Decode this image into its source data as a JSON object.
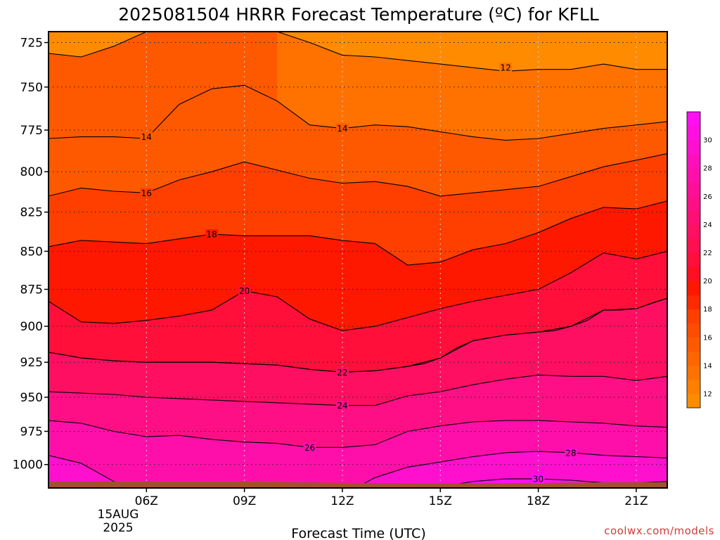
{
  "chart_data": {
    "type": "heatmap",
    "title": "2025081504 HRRR Forecast Temperature (ºC) for KFLL",
    "xlabel": "Forecast Time (UTC)",
    "ylabel": "",
    "x_ticks": [
      "06Z",
      "09Z",
      "12Z",
      "15Z",
      "18Z",
      "21Z"
    ],
    "x_tick_hours": [
      6,
      9,
      12,
      15,
      18,
      21
    ],
    "x_date_label_line1": "15AUG",
    "x_date_label_line2": "2025",
    "xlim": [
      3,
      21.95
    ],
    "y_ticks": [
      725,
      750,
      775,
      800,
      825,
      850,
      875,
      900,
      925,
      950,
      975,
      1000
    ],
    "ylim": [
      1018,
      719
    ],
    "y_scale": "log-pressure",
    "grid": true,
    "colorbar": {
      "levels": [
        11,
        12,
        13,
        14,
        15,
        16,
        17,
        18,
        19,
        20,
        21,
        22,
        23,
        24,
        25,
        26,
        27,
        28,
        29,
        30,
        31,
        32
      ],
      "tick_labels": [
        "12",
        "14",
        "16",
        "18",
        "20",
        "22",
        "24",
        "26",
        "28",
        "30"
      ],
      "colors": [
        "#ff8c00",
        "#ff7f00",
        "#ff7200",
        "#ff6500",
        "#ff5900",
        "#ff4c00",
        "#ff3f00",
        "#ff2a00",
        "#ff1800",
        "#ff0f22",
        "#ff0f3a",
        "#ff0f4f",
        "#ff0f62",
        "#ff0f74",
        "#ff0f86",
        "#ff0f98",
        "#ff0faa",
        "#ff0fbc",
        "#ff0fce",
        "#ff0fe0",
        "#ff0ff2"
      ],
      "position": "right"
    },
    "contours": [
      {
        "value": 12,
        "label": "12",
        "label_at": [
          17,
          739
        ],
        "points": [
          [
            6,
            719
          ],
          [
            7,
            719
          ],
          [
            8,
            719
          ],
          [
            9,
            719
          ],
          [
            10,
            719
          ],
          [
            11,
            725
          ],
          [
            12,
            732
          ],
          [
            13,
            733
          ],
          [
            14,
            735
          ],
          [
            15,
            737
          ],
          [
            16,
            739
          ],
          [
            17,
            741
          ],
          [
            18,
            740
          ],
          [
            19,
            740
          ],
          [
            20,
            737
          ],
          [
            21,
            740
          ],
          [
            21.95,
            740
          ]
        ]
      },
      {
        "value": 14,
        "label": "14",
        "label_at": [
          6,
          779
        ],
        "points": [
          [
            3,
            731
          ],
          [
            4,
            733
          ],
          [
            5,
            727
          ],
          [
            6,
            719
          ],
          [
            7,
            719
          ],
          [
            8,
            719
          ],
          [
            9,
            719
          ],
          [
            10,
            719
          ]
        ]
      },
      {
        "value": 14,
        "label": "14",
        "label_at": [
          12,
          774
        ],
        "points": [
          [
            3,
            780
          ],
          [
            4,
            779
          ],
          [
            5,
            779
          ],
          [
            6,
            780
          ],
          [
            7,
            760
          ],
          [
            8,
            751
          ],
          [
            9,
            749
          ],
          [
            10,
            758
          ],
          [
            11,
            772
          ],
          [
            12,
            774
          ],
          [
            13,
            772
          ],
          [
            14,
            773
          ],
          [
            15,
            776
          ],
          [
            16,
            779
          ],
          [
            17,
            781
          ],
          [
            18,
            780
          ],
          [
            19,
            777
          ],
          [
            20,
            774
          ],
          [
            21,
            772
          ],
          [
            21.95,
            770
          ]
        ]
      },
      {
        "value": 16,
        "label": "16",
        "label_at": [
          6,
          813
        ],
        "points": [
          [
            3,
            815
          ],
          [
            4,
            810
          ],
          [
            5,
            812
          ],
          [
            6,
            813
          ],
          [
            7,
            805
          ],
          [
            8,
            800
          ],
          [
            9,
            794
          ],
          [
            10,
            799
          ],
          [
            11,
            804
          ],
          [
            12,
            807
          ],
          [
            13,
            806
          ],
          [
            14,
            809
          ],
          [
            15,
            815
          ],
          [
            16,
            813
          ],
          [
            17,
            811
          ],
          [
            18,
            809
          ],
          [
            19,
            803
          ],
          [
            20,
            797
          ],
          [
            21,
            793
          ],
          [
            21.95,
            789
          ]
        ]
      },
      {
        "value": 18,
        "label": "18",
        "label_at": [
          8,
          839
        ],
        "points": [
          [
            3,
            847
          ],
          [
            4,
            843
          ],
          [
            5,
            844
          ],
          [
            6,
            845
          ],
          [
            7,
            842
          ],
          [
            8,
            839
          ],
          [
            9,
            840
          ],
          [
            10,
            840
          ],
          [
            11,
            840
          ],
          [
            12,
            843
          ],
          [
            13,
            845
          ],
          [
            14,
            859
          ],
          [
            15,
            857
          ],
          [
            16,
            849
          ],
          [
            17,
            845
          ],
          [
            18,
            838
          ],
          [
            19,
            829
          ],
          [
            20,
            822
          ],
          [
            21,
            823
          ],
          [
            21.95,
            818
          ]
        ]
      },
      {
        "value": 20,
        "label": "20",
        "label_at": [
          9,
          876
        ],
        "points": [
          [
            3,
            883
          ],
          [
            4,
            897
          ],
          [
            5,
            898
          ],
          [
            6,
            896
          ],
          [
            7,
            893
          ],
          [
            8,
            889
          ],
          [
            9,
            876
          ],
          [
            10,
            880
          ],
          [
            11,
            895
          ],
          [
            12,
            903
          ],
          [
            13,
            900
          ],
          [
            14,
            894
          ],
          [
            15,
            888
          ],
          [
            16,
            883
          ],
          [
            17,
            879
          ],
          [
            18,
            875
          ],
          [
            19,
            864
          ],
          [
            20,
            851
          ],
          [
            21,
            855
          ],
          [
            21.95,
            850
          ]
        ]
      },
      {
        "value": 20,
        "label": "",
        "points": [
          [
            21.95,
            881
          ],
          [
            21.5,
            884
          ],
          [
            21,
            888
          ],
          [
            20.5,
            889
          ],
          [
            20,
            889
          ],
          [
            19.5,
            896
          ],
          [
            19,
            900
          ],
          [
            18.5,
            903
          ],
          [
            18,
            904
          ],
          [
            17.5,
            905
          ],
          [
            17,
            906
          ],
          [
            16.5,
            908
          ],
          [
            16,
            910
          ],
          [
            15.5,
            915
          ],
          [
            15,
            922
          ],
          [
            14.5,
            926
          ],
          [
            14,
            928
          ],
          [
            13,
            931
          ],
          [
            12,
            932
          ],
          [
            11,
            930
          ],
          [
            10,
            927
          ],
          [
            9,
            926
          ],
          [
            8,
            925
          ],
          [
            7,
            925
          ],
          [
            6,
            925
          ],
          [
            5,
            924
          ],
          [
            4,
            922
          ],
          [
            3,
            918
          ]
        ]
      },
      {
        "value": 22,
        "label": "22",
        "label_at": [
          12,
          932
        ],
        "points": [
          [
            3,
            918
          ],
          [
            4,
            922
          ],
          [
            5,
            924
          ],
          [
            6,
            925
          ],
          [
            7,
            925
          ],
          [
            8,
            925
          ],
          [
            9,
            926
          ],
          [
            10,
            927
          ],
          [
            11,
            930
          ],
          [
            12,
            932
          ],
          [
            13,
            931
          ],
          [
            14,
            928
          ],
          [
            15,
            922
          ],
          [
            16,
            910
          ],
          [
            17,
            906
          ],
          [
            18,
            904
          ],
          [
            19,
            900
          ],
          [
            20,
            889
          ],
          [
            21,
            888
          ],
          [
            21.95,
            881
          ]
        ]
      },
      {
        "value": 24,
        "label": "24",
        "label_at": [
          12,
          956
        ],
        "points": [
          [
            3,
            946
          ],
          [
            4,
            947
          ],
          [
            5,
            948
          ],
          [
            6,
            950
          ],
          [
            7,
            951
          ],
          [
            8,
            952
          ],
          [
            9,
            953
          ],
          [
            10,
            954
          ],
          [
            11,
            955
          ],
          [
            12,
            956
          ],
          [
            13,
            956
          ],
          [
            14,
            949
          ],
          [
            15,
            946
          ],
          [
            16,
            941
          ],
          [
            17,
            937
          ],
          [
            18,
            934
          ],
          [
            19,
            935
          ],
          [
            20,
            935
          ],
          [
            21,
            938
          ],
          [
            21.95,
            935
          ]
        ]
      },
      {
        "value": 26,
        "label": "26",
        "label_at": [
          11,
          987
        ],
        "points": [
          [
            3,
            967
          ],
          [
            4,
            969
          ],
          [
            5,
            975
          ],
          [
            6,
            979
          ],
          [
            7,
            978
          ],
          [
            8,
            981
          ],
          [
            9,
            983
          ],
          [
            10,
            984
          ],
          [
            11,
            987
          ],
          [
            12,
            987
          ],
          [
            13,
            985
          ],
          [
            14,
            975
          ],
          [
            15,
            971
          ],
          [
            16,
            968
          ],
          [
            17,
            967
          ],
          [
            18,
            967
          ],
          [
            19,
            968
          ],
          [
            20,
            969
          ],
          [
            21,
            971
          ],
          [
            21.95,
            972
          ]
        ]
      },
      {
        "value": 28,
        "label": "28",
        "label_at": [
          19,
          991
        ],
        "points": [
          [
            3,
            993
          ],
          [
            4,
            999
          ],
          [
            5,
            1013
          ],
          [
            6,
            1018
          ],
          [
            12.4,
            1018
          ],
          [
            13,
            1010
          ],
          [
            14,
            1002
          ],
          [
            15,
            998
          ],
          [
            16,
            994
          ],
          [
            17,
            991
          ],
          [
            18,
            990
          ],
          [
            19,
            991
          ],
          [
            20,
            993
          ],
          [
            21,
            994
          ],
          [
            21.95,
            995
          ]
        ]
      },
      {
        "value": 30,
        "label": "30",
        "label_at": [
          18,
          1011
        ],
        "points": [
          [
            14,
            1018
          ],
          [
            15,
            1017
          ],
          [
            16,
            1013
          ],
          [
            17,
            1011
          ],
          [
            18,
            1011
          ],
          [
            19,
            1012
          ],
          [
            20,
            1014
          ],
          [
            21,
            1014
          ],
          [
            21.95,
            1013
          ]
        ]
      }
    ],
    "ground_level_hpa": [
      [
        3,
        1013
      ],
      [
        6,
        1013
      ],
      [
        9,
        1013
      ],
      [
        12,
        1014
      ],
      [
        15,
        1014.5
      ],
      [
        18,
        1014
      ],
      [
        21,
        1013.5
      ],
      [
        21.95,
        1013.5
      ]
    ]
  },
  "credit": "coolwx.com/models"
}
